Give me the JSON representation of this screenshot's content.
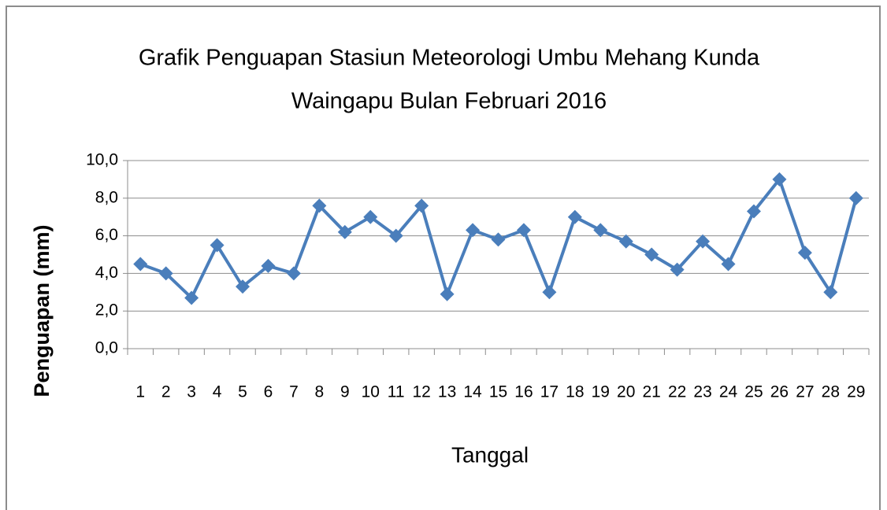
{
  "chart_data": {
    "type": "line",
    "title": [
      "Grafik Penguapan Stasiun Meteorologi Umbu Mehang Kunda",
      "Waingapu Bulan Februari 2016"
    ],
    "x_label": "Tanggal",
    "y_label": "Penguapan (mm)",
    "categories": [
      "1",
      "2",
      "3",
      "4",
      "5",
      "6",
      "7",
      "8",
      "9",
      "10",
      "11",
      "12",
      "13",
      "14",
      "15",
      "16",
      "17",
      "18",
      "19",
      "20",
      "21",
      "22",
      "23",
      "24",
      "25",
      "26",
      "27",
      "28",
      "29"
    ],
    "series": [
      {
        "name": "Penguapan",
        "color": "#4a7ebb",
        "values": [
          4.5,
          4.0,
          2.7,
          5.5,
          3.3,
          4.4,
          4.0,
          7.6,
          6.2,
          7.0,
          6.0,
          7.6,
          2.9,
          6.3,
          5.8,
          6.3,
          3.0,
          7.0,
          6.3,
          5.7,
          5.0,
          4.2,
          5.7,
          4.5,
          7.3,
          9.0,
          5.1,
          3.0,
          8.0
        ]
      }
    ],
    "ylim": [
      0,
      10
    ],
    "yticks": [
      {
        "value": 0,
        "label": "0,0"
      },
      {
        "value": 2,
        "label": "2,0"
      },
      {
        "value": 4,
        "label": "4,0"
      },
      {
        "value": 6,
        "label": "6,0"
      },
      {
        "value": 8,
        "label": "8,0"
      },
      {
        "value": 10,
        "label": "10,0"
      }
    ],
    "grid": true,
    "legend": false
  }
}
